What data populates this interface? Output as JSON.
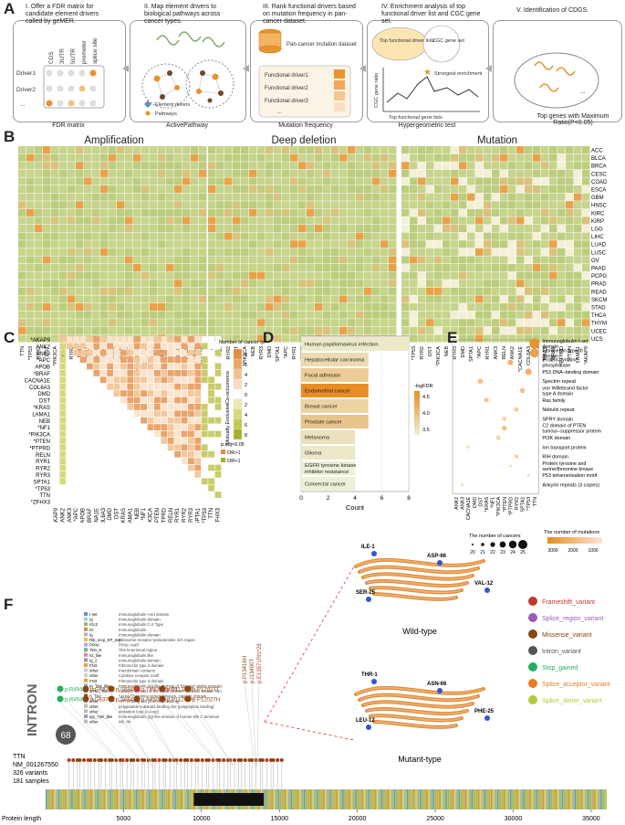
{
  "panelA": {
    "letter": "A",
    "steps": [
      {
        "title": "I. Offer a FDR matrix for candidate element drivers called by geMER.",
        "caption": "FDR matrix"
      },
      {
        "title": "II. Map element drivers to biological pathways across cancer types.",
        "caption": "ActivePathway"
      },
      {
        "title": "III. Rank functional drivers based on mutation frequency in pan-cancer dataset.",
        "caption": "Mutation frequency"
      },
      {
        "title": "IV. Enrichment analysis of top functional driver list and CGC gene set.",
        "caption": "Hypergeometric test"
      },
      {
        "title": "V. Identification of CDGS.",
        "caption": "Top genes with Maximum Ratio(P<0.05)"
      }
    ],
    "fdr_cols": [
      "CDS",
      "3UTR",
      "5UTR",
      "promoter",
      "splice site"
    ],
    "fdr_rows": [
      "Driver1",
      "Driver2",
      "..."
    ],
    "legend_element": "Element drivers",
    "legend_pathways": "Pathways",
    "dataset": "Pan-cancer mutation dataset",
    "functional": [
      "Functional driver1",
      "Functional driver2",
      "Functional driver3",
      "..."
    ],
    "venn_left": "Top functional driver lists",
    "venn_right": "CGC gene set",
    "strongest": "Strongest enrichment",
    "ylab": "CGC gene ratio",
    "xlab": "Top functional gene lists"
  },
  "panelB": {
    "letter": "B",
    "titles": [
      "Amplification",
      "Deep deletion",
      "Mutation"
    ],
    "cancers": [
      "ACC",
      "BLCA",
      "BRCA",
      "CESC",
      "COAD",
      "ESCA",
      "GBM",
      "HNSC",
      "KIRC",
      "KIRP",
      "LGG",
      "LIHC",
      "LUAD",
      "LUSC",
      "OV",
      "PAAD",
      "PCPG",
      "PRAD",
      "READ",
      "SKCM",
      "STAD",
      "THCA",
      "THYM",
      "UCEC",
      "UCS"
    ],
    "genes": [
      "TTN",
      "*TP53",
      "RYR2",
      "DST",
      "*PIK3CA",
      "NEB",
      "RYR3",
      "DMD",
      "SPTA1",
      "*APC",
      "RYR1",
      "ANK3",
      "RELN",
      "ANK2",
      "*CACNA1E",
      "COL6A3",
      "*NF1",
      "*KRAS",
      "*BRAF",
      "*PTPRD",
      "*PTEN",
      "LAMA1",
      "*AKAP9"
    ]
  },
  "panelC": {
    "letter": "C",
    "genes": [
      "*AKAP9",
      "ANK2",
      "ANK3",
      "*APC",
      "APOB",
      "*BRAF",
      "CACNA1E",
      "COL6A3",
      "DMD",
      "DST",
      "*KRAS",
      "LAMA1",
      "NEB",
      "*NF1",
      "*PIK3CA",
      "*PTEN",
      "*PTPRD",
      "RELN",
      "RYR1",
      "RYR2",
      "RYR3",
      "SPTA1",
      "*TP53",
      "TTN",
      "*ZFHX3"
    ],
    "legend_count_title": "Number of cancer types",
    "legend_ticks": [
      "8",
      "6",
      "4",
      "2",
      "0",
      "2",
      "4",
      "6",
      "8"
    ],
    "legend_top": "Co-occurrence",
    "legend_bottom": "Mutually Exclusive",
    "padj": "p.adj<0.05",
    "or1": "OR>1",
    "or2": "OR<1"
  },
  "panelD": {
    "letter": "D",
    "xlabel": "Count",
    "xticks": [
      "0",
      "2",
      "4",
      "6",
      "8"
    ],
    "legend_title": "-logFDR",
    "legend_ticks": [
      "4.5",
      "4.0",
      "3.5"
    ]
  },
  "chart_data": {
    "type": "bar",
    "categories": [
      "Human papillomavirus infection",
      "Hepatocellular carcinoma",
      "Focal adhesion",
      "Endometrial cancer",
      "Breast cancer",
      "Prostate cancer",
      "Melanoma",
      "Glioma",
      "EGFR tyrosine kinase inhibitor resistance",
      "Colorectal cancer"
    ],
    "values": [
      8,
      5,
      5,
      5,
      5,
      5,
      4,
      4,
      4,
      4
    ],
    "xlabel": "Count",
    "xlim": [
      0,
      8
    ],
    "color_scale_title": "-logFDR",
    "color_values": [
      3.4,
      3.6,
      3.8,
      4.7,
      3.7,
      3.9,
      3.5,
      3.4,
      3.3,
      3.3
    ],
    "grid": true
  },
  "panelE": {
    "letter": "E",
    "domains": [
      "Immunoglobulin I-set domain",
      "Fibronectin type III domain",
      "Protein–tyrosine phosphatase",
      "P53 DNA–binding domain",
      "Spectrin repeat",
      "von Willebrand factor type A domain",
      "Ras family",
      "Nebulin repeat",
      "SPRY domain",
      "C2 domain of PTEN tumour–suppressor protein",
      "PI3K domain",
      "Ion transport protein",
      "RIH domain",
      "Protein tyrosine and serine/threonine kinase",
      "P53 tetramerisation motif",
      "Ankyrin repeats (3 copies)"
    ],
    "genes": [
      "ANK2",
      "ANK3",
      "CACNA1E",
      "DMD",
      "DST",
      "*KRAS",
      "*NF1",
      "*PIK3CA",
      "*PTEN",
      "*PTPRD",
      "RYR2",
      "SPTA1",
      "*TP53",
      "TTN"
    ],
    "legend_cancers": "The number of cancers",
    "legend_cancer_ticks": [
      "20",
      "21",
      "22",
      "23",
      "24",
      "25"
    ],
    "legend_mut": "The number of mutations",
    "legend_mut_ticks": [
      "3000",
      "2000",
      "1000"
    ]
  },
  "panelF": {
    "letter": "F",
    "gene": "TTN",
    "transcript": "NM_001267550",
    "variants": "326 variants",
    "samples": "181 samples",
    "intron": "INTRON",
    "count": "68",
    "domain_legend": [
      [
        "I-set",
        "Immunoglobulin I-set domain"
      ],
      [
        "Ig",
        "Immunoglobulin domain"
      ],
      [
        "IGc2",
        "Immunoglobulin C-2 Type"
      ],
      [
        "IG",
        "Immunoglobulin"
      ],
      [
        "Ig",
        "Immunoglobulin domain"
      ],
      [
        "Rib_recp_KP_reg",
        "Ribosome receptor lysine/proline rich region"
      ],
      [
        "PPAK",
        "PPAK motif"
      ],
      [
        "Titin_N",
        "Titin N-terminal region"
      ],
      [
        "IG_like",
        "Immunoglobulin like"
      ],
      [
        "Ig_2",
        "Immunoglobulin domain"
      ],
      [
        "FN3",
        "Fibronectin type 3 domain"
      ],
      [
        "other",
        "Interdomain contacts"
      ],
      [
        "other",
        "Cytokine receptor motif"
      ],
      [
        "FN3",
        "Fibronectin type 3 domain"
      ],
      [
        "Ig_Titin_like",
        "Immunoglobulin (Ig)-like domain of Titin and similar proteins"
      ],
      [
        "STKc_Titin",
        "Catalytic domain of the Giant Serine/Threonine Kinase Titin"
      ],
      [
        "S_TKc",
        "Serine/Threonine protein kinases, catalytic domain"
      ],
      [
        "other",
        "ATP binding site [chemical binding]"
      ],
      [
        "other",
        "polypeptide substrate binding site [polypeptide binding]"
      ],
      [
        "other",
        "activation loop (A-loop)"
      ],
      [
        "Ig1_Titin_like",
        "Immunoglobulin (Ig)-like domain of human titin C terminus"
      ],
      [
        "other",
        "M6. Ifrr"
      ]
    ],
    "mut_labels": [
      "p.R4948L",
      "p.R4949*",
      "p.G6376E",
      "p.G6376E",
      "p.S6841N",
      "p.S6841N",
      "p.T8505Rfs*11",
      "p.A8505T",
      "p.P11205T",
      "p.P11205H",
      "p.P12027T",
      "p.P12027H",
      "p.P13416H",
      "p.I13490T",
      "p.E13571Rfs*28"
    ],
    "axis_label": "Protein length",
    "axis_ticks": [
      "5000",
      "10000",
      "15000",
      "20000",
      "25000",
      "30000",
      "35000"
    ],
    "wild_type": "Wild-type",
    "mutant_type": "Mutant-type",
    "wt_residues": [
      "ILE-1",
      "ASP-66",
      "SER-25",
      "VAL-12"
    ],
    "mt_residues": [
      "THR-1",
      "ASN-66",
      "LEU-12",
      "PHE-25"
    ],
    "variant_legend": [
      {
        "label": "Frameshift_variant",
        "color": "#c0392b"
      },
      {
        "label": "Splice_region_variant",
        "color": "#9b59b6"
      },
      {
        "label": "Missense_variant",
        "color": "#8b4513"
      },
      {
        "label": "Intron_variant",
        "color": "#555555"
      },
      {
        "label": "Stop_gained",
        "color": "#27ae60"
      },
      {
        "label": "Splice_acceptor_variant",
        "color": "#e67e22"
      },
      {
        "label": "Splice_donor_variant",
        "color": "#b5c934"
      }
    ]
  }
}
